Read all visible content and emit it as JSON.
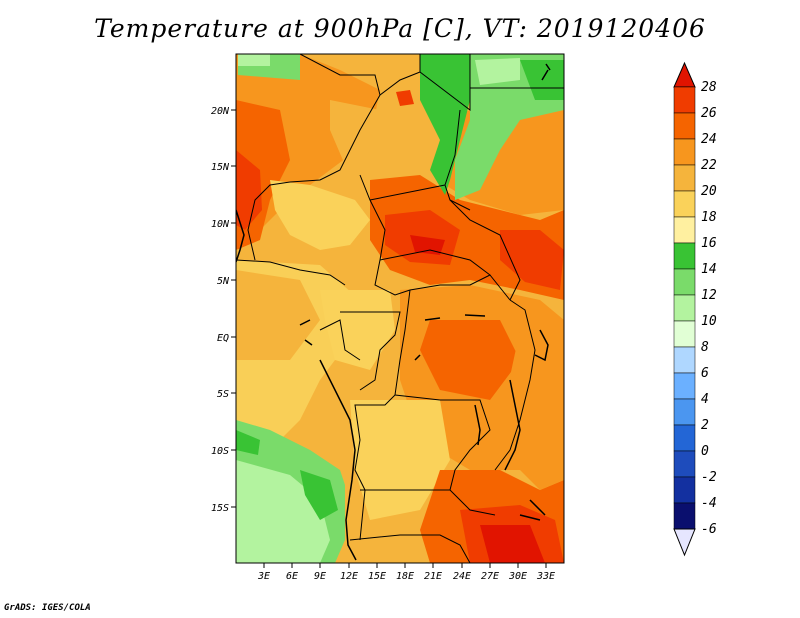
{
  "title": "Temperature at 900hPa [C], VT: 2019120406",
  "footer": "GrADS: IGES/COLA",
  "map": {
    "lat_labels": [
      "20N",
      "15N",
      "10N",
      "5N",
      "EQ",
      "5S",
      "10S",
      "15S"
    ],
    "lon_labels": [
      "3E",
      "6E",
      "9E",
      "12E",
      "15E",
      "18E",
      "21E",
      "24E",
      "27E",
      "30E",
      "33E"
    ]
  },
  "colorbar": {
    "labels": [
      "28",
      "26",
      "24",
      "22",
      "20",
      "18",
      "16",
      "14",
      "12",
      "10",
      "8",
      "6",
      "4",
      "2",
      "0",
      "-2",
      "-4",
      "-6"
    ],
    "colors": [
      "#e11400",
      "#f03c00",
      "#f56400",
      "#f7961e",
      "#f5b43c",
      "#fad25a",
      "#fff0a0",
      "#39c334",
      "#7adb6a",
      "#b3f39f",
      "#e1ffd5",
      "#afd7ff",
      "#6bb0ff",
      "#4b96f0",
      "#2366d6",
      "#1e4cbc",
      "#1330a0",
      "#0a0f6e"
    ],
    "colors_note": "ordered top (over-arrow) to bottom"
  }
}
